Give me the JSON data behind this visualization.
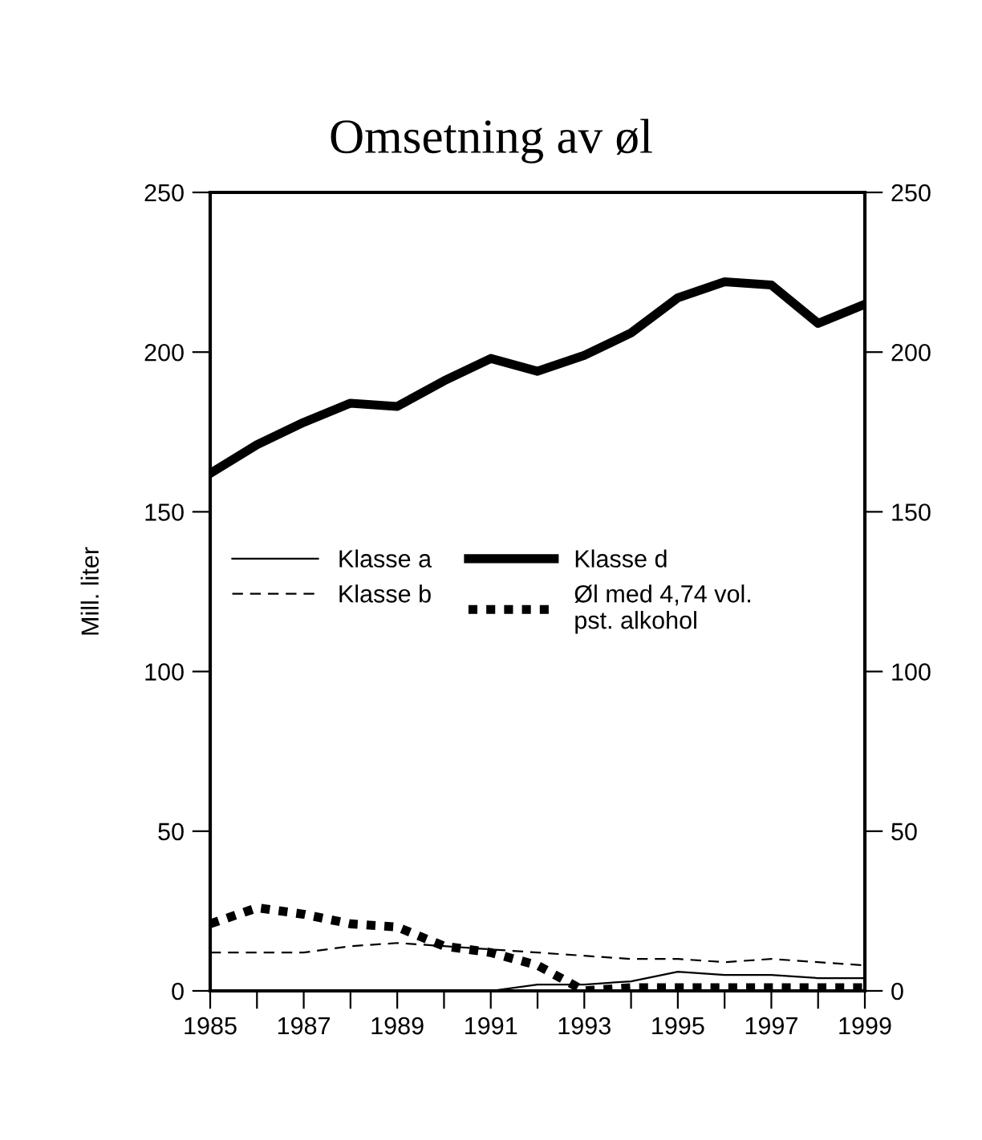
{
  "chart_data": {
    "type": "line",
    "title": "Omsetning av øl",
    "ylabel": "Mill. liter",
    "x": [
      1985,
      1986,
      1987,
      1988,
      1989,
      1990,
      1991,
      1992,
      1993,
      1994,
      1995,
      1996,
      1997,
      1998,
      1999
    ],
    "xlim": [
      1985,
      1999
    ],
    "xticks": [
      1985,
      {
        "value": 1986,
        "label": null
      },
      1987,
      {
        "value": 1988,
        "label": null
      },
      1989,
      {
        "value": 1990,
        "label": null
      },
      1991,
      {
        "value": 1992,
        "label": null
      },
      1993,
      {
        "value": 1994,
        "label": null
      },
      1995,
      {
        "value": 1996,
        "label": null
      },
      1997,
      {
        "value": 1998,
        "label": null
      },
      1999
    ],
    "ylim": [
      0,
      250
    ],
    "yticks": [
      0,
      50,
      100,
      150,
      200,
      250
    ],
    "y2lim": [
      0,
      250
    ],
    "y2ticks": [
      0,
      50,
      100,
      150,
      200,
      250
    ],
    "grid": false,
    "legend": "center left",
    "marker": "none",
    "series": [
      {
        "name": "Klasse a",
        "color": "#000000",
        "line_style": "solid",
        "values": [
          0,
          0,
          0,
          0,
          0,
          0,
          0,
          2,
          2,
          3,
          6,
          5,
          5,
          4,
          4
        ]
      },
      {
        "name": "Klasse b",
        "color": "#000000",
        "line_style": "dashed",
        "values": [
          12,
          12,
          12,
          14,
          15,
          14,
          13,
          12,
          11,
          10,
          10,
          9,
          10,
          9,
          8
        ]
      },
      {
        "name": "Klasse d",
        "color": "#000000",
        "line_style": "solid",
        "values": [
          162,
          171,
          178,
          184,
          183,
          191,
          198,
          194,
          199,
          206,
          217,
          222,
          221,
          209,
          215
        ]
      },
      {
        "name": "Øl med 4,74 vol.\npst. alkohol",
        "color": "#000000",
        "line_style": "dotted",
        "values": [
          21,
          26,
          24,
          21,
          20,
          14,
          12,
          8,
          0,
          1,
          1,
          1,
          1,
          1,
          1
        ]
      }
    ]
  }
}
